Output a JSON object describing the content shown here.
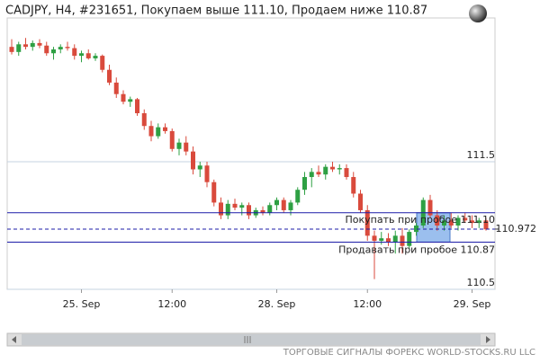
{
  "chart_data": {
    "type": "candlestick",
    "title": "CADJPY, H4, #231651, Покупаем выше 111.10, Продаем ниже 110.87",
    "categories": [
      null,
      null,
      null,
      null,
      null,
      null,
      null,
      null,
      null,
      null,
      "25. Sep",
      null,
      null,
      null,
      null,
      null,
      null,
      null,
      null,
      null,
      null,
      null,
      null,
      "12:00",
      null,
      null,
      null,
      null,
      null,
      null,
      null,
      null,
      null,
      null,
      null,
      null,
      null,
      null,
      "28. Sep",
      null,
      null,
      null,
      null,
      null,
      null,
      null,
      null,
      null,
      null,
      null,
      null,
      "12:00",
      null,
      null,
      null,
      null,
      null,
      null,
      null,
      null,
      null,
      null,
      null,
      null,
      null,
      null,
      "29. Sep",
      null,
      null
    ],
    "ohlc": [
      [
        112.4,
        112.46,
        112.34,
        112.36
      ],
      [
        112.36,
        112.44,
        112.33,
        112.42
      ],
      [
        112.42,
        112.47,
        112.38,
        112.4
      ],
      [
        112.4,
        112.45,
        112.37,
        112.43
      ],
      [
        112.43,
        112.46,
        112.39,
        112.41
      ],
      [
        112.41,
        112.44,
        112.33,
        112.35
      ],
      [
        112.35,
        112.4,
        112.3,
        112.38
      ],
      [
        112.38,
        112.42,
        112.35,
        112.4
      ],
      [
        112.4,
        112.44,
        112.37,
        112.39
      ],
      [
        112.39,
        112.42,
        112.3,
        112.33
      ],
      [
        112.33,
        112.37,
        112.28,
        112.35
      ],
      [
        112.35,
        112.38,
        112.3,
        112.31
      ],
      [
        112.31,
        112.35,
        112.29,
        112.33
      ],
      [
        112.33,
        112.34,
        112.2,
        112.22
      ],
      [
        112.22,
        112.26,
        112.1,
        112.12
      ],
      [
        112.12,
        112.16,
        112.0,
        112.03
      ],
      [
        112.03,
        112.06,
        111.95,
        111.97
      ],
      [
        111.97,
        112.01,
        111.93,
        111.99
      ],
      [
        111.99,
        112.0,
        111.86,
        111.88
      ],
      [
        111.88,
        111.91,
        111.75,
        111.78
      ],
      [
        111.78,
        111.82,
        111.66,
        111.7
      ],
      [
        111.7,
        111.8,
        111.68,
        111.77
      ],
      [
        111.77,
        111.8,
        111.72,
        111.74
      ],
      [
        111.74,
        111.76,
        111.58,
        111.6
      ],
      [
        111.6,
        111.68,
        111.55,
        111.65
      ],
      [
        111.65,
        111.7,
        111.55,
        111.58
      ],
      [
        111.58,
        111.62,
        111.4,
        111.44
      ],
      [
        111.44,
        111.5,
        111.38,
        111.47
      ],
      [
        111.47,
        111.5,
        111.3,
        111.34
      ],
      [
        111.34,
        111.36,
        111.15,
        111.18
      ],
      [
        111.18,
        111.22,
        111.05,
        111.08
      ],
      [
        111.08,
        111.2,
        111.05,
        111.17
      ],
      [
        111.17,
        111.21,
        111.12,
        111.14
      ],
      [
        111.14,
        111.18,
        111.08,
        111.16
      ],
      [
        111.16,
        111.18,
        111.05,
        111.08
      ],
      [
        111.08,
        111.14,
        111.06,
        111.12
      ],
      [
        111.12,
        111.15,
        111.08,
        111.1
      ],
      [
        111.1,
        111.18,
        111.08,
        111.16
      ],
      [
        111.16,
        111.22,
        111.12,
        111.2
      ],
      [
        111.2,
        111.22,
        111.1,
        111.12
      ],
      [
        111.12,
        111.2,
        111.08,
        111.18
      ],
      [
        111.18,
        111.3,
        111.16,
        111.28
      ],
      [
        111.28,
        111.42,
        111.24,
        111.38
      ],
      [
        111.38,
        111.45,
        111.3,
        111.42
      ],
      [
        111.42,
        111.47,
        111.38,
        111.4
      ],
      [
        111.4,
        111.48,
        111.36,
        111.46
      ],
      [
        111.46,
        111.5,
        111.42,
        111.44
      ],
      [
        111.44,
        111.48,
        111.4,
        111.45
      ],
      [
        111.45,
        111.48,
        111.36,
        111.38
      ],
      [
        111.38,
        111.42,
        111.22,
        111.25
      ],
      [
        111.25,
        111.28,
        111.1,
        111.12
      ],
      [
        111.12,
        111.16,
        110.88,
        110.92
      ],
      [
        110.92,
        110.96,
        110.58,
        110.88
      ],
      [
        110.88,
        110.95,
        110.85,
        110.9
      ],
      [
        110.9,
        110.94,
        110.84,
        110.87
      ],
      [
        110.87,
        110.96,
        110.78,
        110.92
      ],
      [
        110.92,
        110.98,
        110.78,
        110.84
      ],
      [
        110.84,
        110.97,
        110.82,
        110.95
      ],
      [
        110.95,
        111.02,
        110.92,
        111.0
      ],
      [
        111.0,
        111.22,
        110.98,
        111.2
      ],
      [
        111.2,
        111.24,
        111.06,
        111.08
      ],
      [
        111.08,
        111.12,
        110.96,
        111.0
      ],
      [
        111.0,
        111.08,
        110.96,
        111.04
      ],
      [
        111.04,
        111.1,
        110.98,
        111.0
      ],
      [
        111.0,
        111.08,
        110.96,
        111.06
      ],
      [
        111.06,
        111.1,
        111.02,
        111.04
      ],
      [
        111.04,
        111.08,
        110.98,
        111.02
      ],
      [
        111.02,
        111.06,
        110.98,
        111.04
      ],
      [
        111.04,
        111.06,
        110.96,
        110.97
      ]
    ],
    "up_color": "#2ea043",
    "down_color": "#d94a3c",
    "ylim": [
      110.5,
      112.63
    ],
    "yticks": [
      110.5,
      111.5
    ],
    "grid": true,
    "levels": [
      {
        "label": "Покупать при пробое 111.10",
        "value": 111.1,
        "color": "#1c1ca8"
      },
      {
        "label": "Продавать при пробое 110.87",
        "value": 110.87,
        "color": "#1c1ca8"
      }
    ],
    "current_price": {
      "label": "110.972",
      "value": 110.972,
      "color": "#1c1ca8"
    },
    "footer": "ТОРГОВЫЕ СИГНАЛЫ ФОРЕКС WORLD-STOCKS.RU LLC"
  }
}
